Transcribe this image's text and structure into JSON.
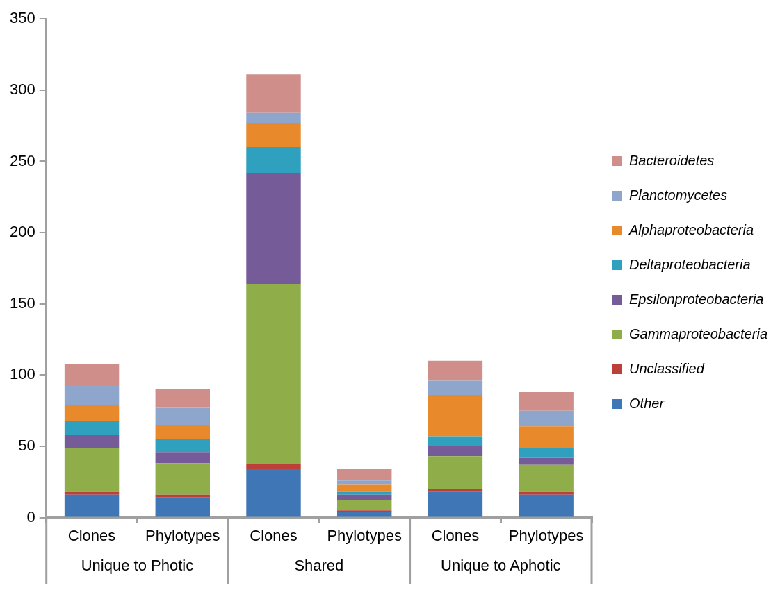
{
  "chart_data": {
    "type": "bar",
    "stacked": true,
    "categories": [
      "Clones",
      "Phylotypes",
      "Clones",
      "Phylotypes",
      "Clones",
      "Phylotypes"
    ],
    "annotations": [
      "Unique to Photic",
      "Shared",
      "Unique to Aphotic"
    ],
    "series": [
      {
        "name": "Other",
        "color": "#3f76b6",
        "values": [
          16,
          14,
          34,
          4,
          18,
          16
        ]
      },
      {
        "name": "Unclassified",
        "color": "#bd3f3a",
        "values": [
          2,
          2,
          4,
          1,
          2,
          2
        ]
      },
      {
        "name": "Gammaproteobacteria",
        "color": "#8fae4a",
        "values": [
          31,
          22,
          126,
          7,
          23,
          19
        ]
      },
      {
        "name": "Epsilonproteobacteria",
        "color": "#765b99",
        "values": [
          9,
          8,
          78,
          4,
          7,
          5
        ]
      },
      {
        "name": "Deltaproteobacteria",
        "color": "#2fa0bd",
        "values": [
          10,
          9,
          18,
          2,
          7,
          7
        ]
      },
      {
        "name": "Alphaproteobacteria",
        "color": "#e8892c",
        "values": [
          11,
          10,
          17,
          5,
          29,
          15
        ]
      },
      {
        "name": "Planctomycetes",
        "color": "#8ea6cc",
        "values": [
          14,
          12,
          7,
          3,
          10,
          11
        ]
      },
      {
        "name": "Bacteroidetes",
        "color": "#d08e8b",
        "values": [
          15,
          13,
          27,
          8,
          14,
          13
        ]
      }
    ],
    "ylim": [
      0,
      350
    ],
    "yticks": [
      0,
      50,
      100,
      150,
      200,
      250,
      300,
      350
    ],
    "grid": false,
    "legend": "right"
  }
}
